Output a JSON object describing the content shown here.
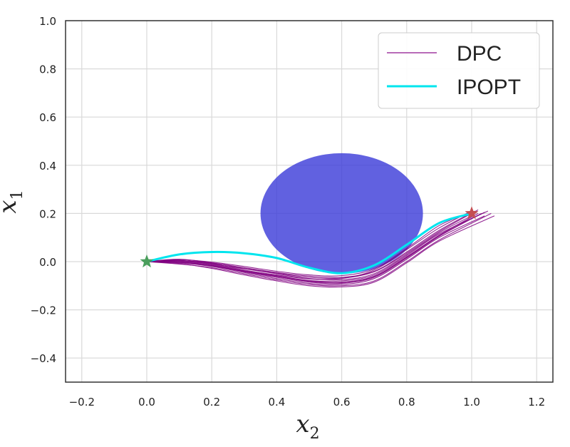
{
  "chart_data": {
    "type": "line",
    "xlabel": "x",
    "xlabel_sub": "2",
    "ylabel": "x",
    "ylabel_sub": "1",
    "xlim": [
      -0.25,
      1.25
    ],
    "ylim": [
      -0.5,
      1.0
    ],
    "xticks": [
      -0.2,
      0.0,
      0.2,
      0.4,
      0.6,
      0.8,
      1.0,
      1.2
    ],
    "yticks": [
      -0.4,
      -0.2,
      0.0,
      0.2,
      0.4,
      0.6,
      0.8,
      1.0
    ],
    "xtick_labels": [
      "−0.2",
      "0.0",
      "0.2",
      "0.4",
      "0.6",
      "0.8",
      "1.0",
      "1.2"
    ],
    "ytick_labels": [
      "−0.4",
      "−0.2",
      "0.0",
      "0.2",
      "0.4",
      "0.6",
      "0.8",
      "1.0"
    ],
    "grid": true,
    "legend": {
      "position": "top-right",
      "entries": [
        {
          "label": "DPC",
          "color": "#a03aa0"
        },
        {
          "label": "IPOPT",
          "color": "#00e5ee"
        }
      ]
    },
    "obstacle": {
      "center": [
        0.6,
        0.2
      ],
      "radius_x": 0.25,
      "radius_y": 0.25,
      "color": "#3a3ad8"
    },
    "start_marker": {
      "x": 0.0,
      "y": 0.0,
      "color": "#4a9e5c"
    },
    "goal_marker": {
      "x": 1.0,
      "y": 0.2,
      "color": "#c44e52"
    },
    "series": [
      {
        "name": "IPOPT",
        "color": "#00e5ee",
        "points": [
          [
            0.0,
            0.0
          ],
          [
            0.1,
            0.03
          ],
          [
            0.2,
            0.04
          ],
          [
            0.3,
            0.035
          ],
          [
            0.4,
            0.015
          ],
          [
            0.5,
            -0.025
          ],
          [
            0.6,
            -0.048
          ],
          [
            0.7,
            -0.015
          ],
          [
            0.8,
            0.07
          ],
          [
            0.9,
            0.16
          ],
          [
            1.0,
            0.2
          ]
        ]
      },
      {
        "name": "DPC",
        "color": "#800080",
        "trajectories": [
          [
            [
              0.0,
              0.0
            ],
            [
              0.1,
              0.005
            ],
            [
              0.2,
              -0.01
            ],
            [
              0.3,
              -0.03
            ],
            [
              0.4,
              -0.05
            ],
            [
              0.5,
              -0.07
            ],
            [
              0.6,
              -0.075
            ],
            [
              0.7,
              -0.05
            ],
            [
              0.8,
              0.03
            ],
            [
              0.9,
              0.12
            ],
            [
              1.0,
              0.19
            ]
          ],
          [
            [
              0.0,
              0.0
            ],
            [
              0.1,
              0.0
            ],
            [
              0.2,
              -0.015
            ],
            [
              0.3,
              -0.04
            ],
            [
              0.4,
              -0.06
            ],
            [
              0.5,
              -0.08
            ],
            [
              0.6,
              -0.085
            ],
            [
              0.7,
              -0.06
            ],
            [
              0.8,
              0.02
            ],
            [
              0.9,
              0.11
            ],
            [
              1.02,
              0.2
            ]
          ],
          [
            [
              0.0,
              0.0
            ],
            [
              0.1,
              0.01
            ],
            [
              0.2,
              -0.005
            ],
            [
              0.3,
              -0.025
            ],
            [
              0.4,
              -0.045
            ],
            [
              0.5,
              -0.06
            ],
            [
              0.6,
              -0.065
            ],
            [
              0.7,
              -0.04
            ],
            [
              0.8,
              0.04
            ],
            [
              0.9,
              0.13
            ],
            [
              1.01,
              0.21
            ]
          ],
          [
            [
              0.0,
              0.0
            ],
            [
              0.1,
              -0.005
            ],
            [
              0.2,
              -0.02
            ],
            [
              0.3,
              -0.045
            ],
            [
              0.4,
              -0.07
            ],
            [
              0.5,
              -0.09
            ],
            [
              0.6,
              -0.095
            ],
            [
              0.7,
              -0.07
            ],
            [
              0.8,
              0.01
            ],
            [
              0.9,
              0.1
            ],
            [
              1.04,
              0.19
            ]
          ],
          [
            [
              0.0,
              0.0
            ],
            [
              0.1,
              0.005
            ],
            [
              0.2,
              -0.008
            ],
            [
              0.3,
              -0.035
            ],
            [
              0.4,
              -0.055
            ],
            [
              0.5,
              -0.072
            ],
            [
              0.6,
              -0.07
            ],
            [
              0.7,
              -0.035
            ],
            [
              0.8,
              0.05
            ],
            [
              0.9,
              0.14
            ],
            [
              1.0,
              0.21
            ]
          ],
          [
            [
              0.0,
              0.0
            ],
            [
              0.1,
              -0.01
            ],
            [
              0.2,
              -0.025
            ],
            [
              0.3,
              -0.05
            ],
            [
              0.4,
              -0.075
            ],
            [
              0.5,
              -0.095
            ],
            [
              0.6,
              -0.1
            ],
            [
              0.7,
              -0.08
            ],
            [
              0.8,
              0.0
            ],
            [
              0.9,
              0.09
            ],
            [
              1.06,
              0.2
            ]
          ],
          [
            [
              0.0,
              0.0
            ],
            [
              0.1,
              0.008
            ],
            [
              0.2,
              -0.002
            ],
            [
              0.3,
              -0.02
            ],
            [
              0.4,
              -0.04
            ],
            [
              0.5,
              -0.055
            ],
            [
              0.6,
              -0.058
            ],
            [
              0.7,
              -0.03
            ],
            [
              0.8,
              0.055
            ],
            [
              0.9,
              0.15
            ],
            [
              0.99,
              0.2
            ]
          ],
          [
            [
              0.0,
              0.0
            ],
            [
              0.1,
              -0.003
            ],
            [
              0.2,
              -0.018
            ],
            [
              0.3,
              -0.042
            ],
            [
              0.4,
              -0.065
            ],
            [
              0.5,
              -0.085
            ],
            [
              0.6,
              -0.09
            ],
            [
              0.7,
              -0.065
            ],
            [
              0.8,
              0.015
            ],
            [
              0.9,
              0.105
            ],
            [
              1.03,
              0.2
            ]
          ],
          [
            [
              0.0,
              0.0
            ],
            [
              0.1,
              0.002
            ],
            [
              0.2,
              -0.012
            ],
            [
              0.3,
              -0.038
            ],
            [
              0.4,
              -0.058
            ],
            [
              0.5,
              -0.078
            ],
            [
              0.6,
              -0.08
            ],
            [
              0.7,
              -0.055
            ],
            [
              0.8,
              0.025
            ],
            [
              0.9,
              0.115
            ],
            [
              1.05,
              0.21
            ]
          ],
          [
            [
              0.0,
              0.0
            ],
            [
              0.1,
              -0.008
            ],
            [
              0.2,
              -0.028
            ],
            [
              0.3,
              -0.055
            ],
            [
              0.4,
              -0.08
            ],
            [
              0.5,
              -0.1
            ],
            [
              0.6,
              -0.105
            ],
            [
              0.7,
              -0.085
            ],
            [
              0.8,
              -0.005
            ],
            [
              0.9,
              0.085
            ],
            [
              1.07,
              0.19
            ]
          ],
          [
            [
              0.0,
              0.0
            ],
            [
              0.1,
              0.004
            ],
            [
              0.2,
              -0.006
            ],
            [
              0.3,
              -0.028
            ],
            [
              0.4,
              -0.048
            ],
            [
              0.5,
              -0.065
            ],
            [
              0.6,
              -0.068
            ],
            [
              0.7,
              -0.042
            ],
            [
              0.8,
              0.035
            ],
            [
              0.9,
              0.125
            ],
            [
              1.02,
              0.215
            ]
          ],
          [
            [
              0.0,
              0.0
            ],
            [
              0.1,
              -0.002
            ],
            [
              0.2,
              -0.016
            ],
            [
              0.3,
              -0.04
            ],
            [
              0.4,
              -0.062
            ],
            [
              0.5,
              -0.082
            ],
            [
              0.6,
              -0.087
            ],
            [
              0.7,
              -0.062
            ],
            [
              0.8,
              0.018
            ],
            [
              0.9,
              0.108
            ],
            [
              1.04,
              0.205
            ]
          ]
        ]
      }
    ]
  }
}
